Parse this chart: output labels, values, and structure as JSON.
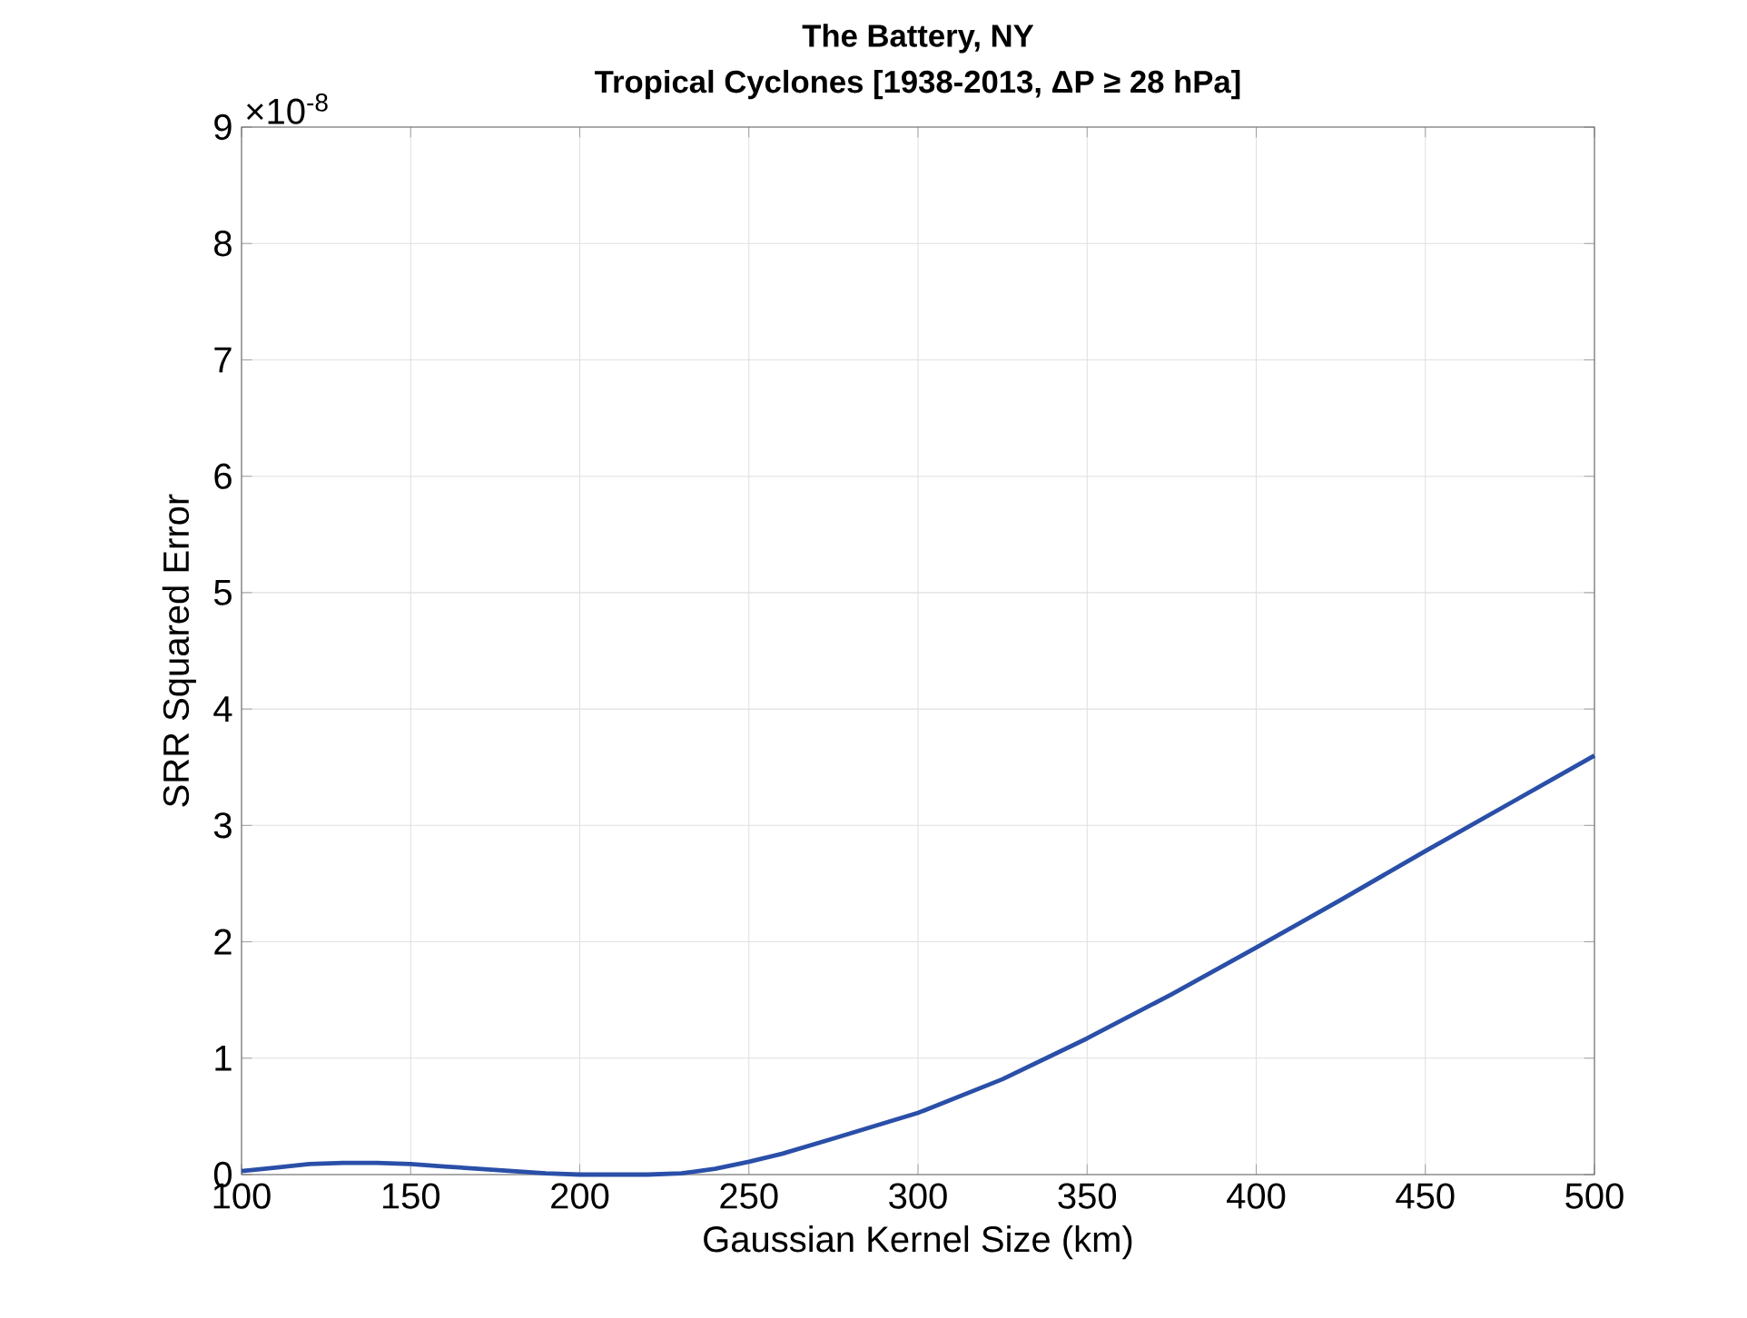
{
  "chart_data": {
    "type": "line",
    "title": "The Battery, NY",
    "subtitle": "Tropical Cyclones [1938-2013, ΔP ≥ 28 hPa]",
    "xlabel": "Gaussian Kernel Size (km)",
    "ylabel": "SRR Squared Error",
    "annotations": [
      "×10$^{-8}$"
    ],
    "x": [
      100,
      110,
      120,
      130,
      140,
      150,
      160,
      170,
      180,
      190,
      200,
      210,
      220,
      230,
      240,
      250,
      260,
      275,
      300,
      325,
      350,
      375,
      400,
      425,
      450,
      475,
      500
    ],
    "series": [
      {
        "color": "#2a4fa8",
        "values": [
          0.03,
          0.06,
          0.09,
          0.1,
          0.1,
          0.09,
          0.07,
          0.05,
          0.03,
          0.01,
          0.0,
          0.0,
          0.0,
          0.01,
          0.05,
          0.11,
          0.18,
          0.31,
          0.53,
          0.82,
          1.17,
          1.55,
          1.95,
          2.36,
          2.78,
          3.19,
          3.6
        ]
      }
    ],
    "xlim": [
      100,
      500
    ],
    "ylim": [
      0,
      9
    ],
    "xticks": [
      100,
      150,
      200,
      250,
      300,
      350,
      400,
      450,
      500
    ],
    "yticks": [
      0,
      1,
      2,
      3,
      4,
      5,
      6,
      7,
      8,
      9
    ],
    "grid": true,
    "marker": "none",
    "line_style": "solid"
  }
}
